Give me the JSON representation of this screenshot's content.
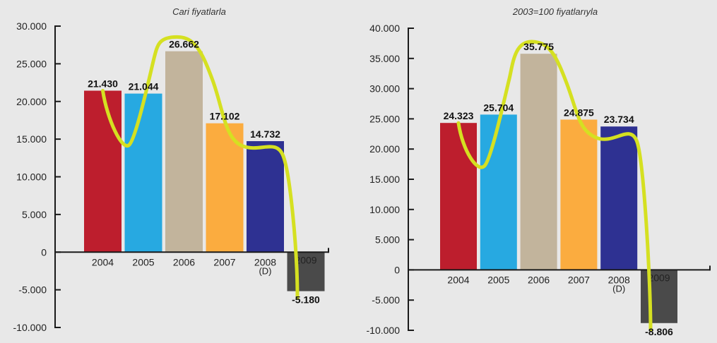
{
  "chart_data": [
    {
      "type": "bar",
      "title": "Cari fiyatlarla",
      "categories": [
        "2004",
        "2005",
        "2006",
        "2007",
        "2008",
        "2009"
      ],
      "category_sub": [
        "",
        "",
        "",
        "",
        "(D)",
        ""
      ],
      "values": [
        21430,
        21044,
        26662,
        17102,
        14732,
        -5180
      ],
      "value_labels": [
        "21.430",
        "21.044",
        "26.662",
        "17.102",
        "14.732",
        "-5.180"
      ],
      "bar_colors": [
        "#bd1e2d",
        "#27a9e1",
        "#c2b49c",
        "#fbac3f",
        "#2e3192",
        "#4a4a4a"
      ],
      "trend_color": "#d5e021",
      "ylim": [
        -10000,
        30000
      ],
      "yticks": [
        30000,
        25000,
        20000,
        15000,
        10000,
        5000,
        0,
        -5000,
        -10000
      ],
      "ytick_labels": [
        "30.000",
        "25.000",
        "20.000",
        "15.000",
        "10.000",
        "5.000",
        "0",
        "-5.000",
        "-10.000"
      ]
    },
    {
      "type": "bar",
      "title": "2003=100 fiyatlarıyla",
      "categories": [
        "2004",
        "2005",
        "2006",
        "2007",
        "2008",
        "2009"
      ],
      "category_sub": [
        "",
        "",
        "",
        "",
        "(D)",
        ""
      ],
      "values": [
        24323,
        25704,
        35775,
        24875,
        23734,
        -8806
      ],
      "value_labels": [
        "24.323",
        "25.704",
        "35.775",
        "24.875",
        "23.734",
        "-8.806"
      ],
      "bar_colors": [
        "#bd1e2d",
        "#27a9e1",
        "#c2b49c",
        "#fbac3f",
        "#2e3192",
        "#4a4a4a"
      ],
      "trend_color": "#d5e021",
      "ylim": [
        -10000,
        40000
      ],
      "yticks": [
        40000,
        35000,
        30000,
        25000,
        20000,
        15000,
        10000,
        5000,
        0,
        -5000,
        -10000
      ],
      "ytick_labels": [
        "40.000",
        "35.000",
        "30.000",
        "25.000",
        "20.000",
        "15.000",
        "10.000",
        "5.000",
        "0",
        "-5.000",
        "-10.000"
      ]
    }
  ]
}
